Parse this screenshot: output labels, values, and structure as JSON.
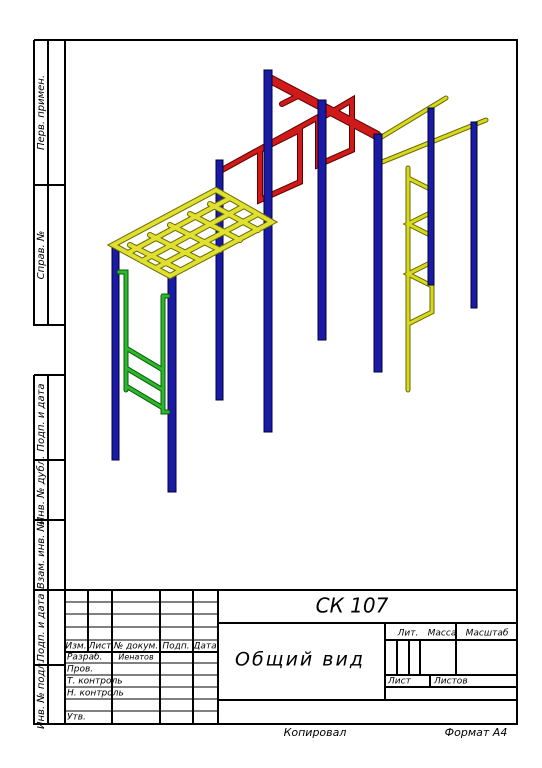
{
  "side_labels": [
    "Перв. примен.",
    "Справ. №",
    "Подп. и дата",
    "Инв. № дубл.",
    "Взам. инв. №",
    "Подп. и дата",
    "Инв. № подл."
  ],
  "title_block": {
    "designation": "СК 107",
    "name": "Общий вид",
    "headers": [
      "Изм.",
      "Лист",
      "№ докум.",
      "Подп.",
      "Дата"
    ],
    "roles": [
      "Разраб.",
      "Пров.",
      "Т. контроль",
      "Н. контроль",
      "Утв."
    ],
    "developer": "Иенатов",
    "stage_headers": [
      "Лит.",
      "Масса",
      "Масштаб"
    ],
    "sheet": "Лист",
    "sheets": "Листов"
  },
  "footer": {
    "copied": "Копировал",
    "format": "Формат А4"
  }
}
